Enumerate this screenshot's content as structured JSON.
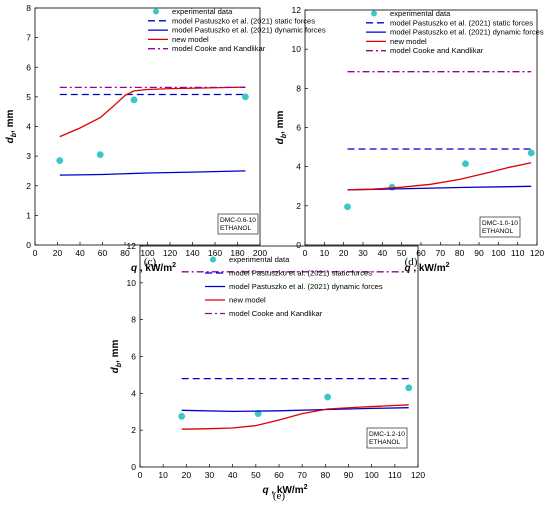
{
  "chart_data": [
    {
      "type": "line",
      "panel_label": "(c)",
      "xlabel": "q , kW/m²",
      "ylabel": "db, mm",
      "xlim": [
        0,
        200
      ],
      "ylim": [
        0,
        8
      ],
      "xticks": [
        "0",
        "20",
        "40",
        "60",
        "80",
        "100",
        "120",
        "140",
        "160",
        "180",
        "200"
      ],
      "yticks": [
        "0",
        "1",
        "2",
        "3",
        "4",
        "5",
        "6",
        "7",
        "8"
      ],
      "note": [
        "DMC-0.6-10",
        "ETHANOL"
      ],
      "legend_position": "top-right",
      "series": [
        {
          "name": "experimental data",
          "style": "markers",
          "color": "#3cc7c7",
          "x": [
            22,
            58,
            88,
            187
          ],
          "y": [
            2.85,
            3.05,
            4.9,
            5.0
          ]
        },
        {
          "name": "model Pastuszko et al. (2021) static forces",
          "style": "dash",
          "color": "#0000cc",
          "x": [
            22,
            187
          ],
          "y": [
            5.08,
            5.08
          ]
        },
        {
          "name": "model Pastuszko et al. (2021) dynamic forces",
          "style": "solid",
          "color": "#0000cc",
          "x": [
            22,
            60,
            100,
            140,
            187
          ],
          "y": [
            2.36,
            2.38,
            2.43,
            2.46,
            2.5
          ]
        },
        {
          "name": "new model",
          "style": "solid",
          "color": "#dd0000",
          "x": [
            22,
            40,
            58,
            70,
            80,
            88,
            100,
            120,
            150,
            187
          ],
          "y": [
            3.66,
            3.95,
            4.3,
            4.7,
            5.05,
            5.2,
            5.25,
            5.28,
            5.3,
            5.33
          ]
        },
        {
          "name": "model Cooke and Kandlikar",
          "style": "dashdot",
          "color": "#990099",
          "x": [
            22,
            187
          ],
          "y": [
            5.32,
            5.32
          ]
        }
      ]
    },
    {
      "type": "line",
      "panel_label": "(d)",
      "xlabel": "q , kW/m²",
      "ylabel": "db, mm",
      "xlim": [
        0,
        120
      ],
      "ylim": [
        0,
        12
      ],
      "xticks": [
        "0",
        "10",
        "20",
        "30",
        "40",
        "50",
        "60",
        "70",
        "80",
        "90",
        "100",
        "110",
        "120"
      ],
      "yticks": [
        "0",
        "2",
        "4",
        "6",
        "8",
        "10",
        "12"
      ],
      "note": [
        "DMC-1.0-10",
        "ETHANOL"
      ],
      "legend_position": "top-right",
      "series": [
        {
          "name": "experimental data",
          "style": "markers",
          "color": "#3cc7c7",
          "x": [
            22,
            45,
            83,
            117
          ],
          "y": [
            1.95,
            2.95,
            4.15,
            4.7
          ]
        },
        {
          "name": "model Pastuszko et al. (2021) static forces",
          "style": "dash",
          "color": "#0000cc",
          "x": [
            22,
            117
          ],
          "y": [
            4.9,
            4.9
          ]
        },
        {
          "name": "model Pastuszko et al. (2021) dynamic forces",
          "style": "solid",
          "color": "#0000cc",
          "x": [
            22,
            45,
            83,
            117
          ],
          "y": [
            2.82,
            2.86,
            2.94,
            3.0
          ]
        },
        {
          "name": "new model",
          "style": "solid",
          "color": "#dd0000",
          "x": [
            22,
            35,
            50,
            65,
            80,
            95,
            105,
            117
          ],
          "y": [
            2.82,
            2.85,
            2.95,
            3.1,
            3.35,
            3.7,
            3.95,
            4.2
          ]
        },
        {
          "name": "model Cooke and Kandlikar",
          "style": "dashdot",
          "color": "#990099",
          "x": [
            22,
            117
          ],
          "y": [
            8.85,
            8.85
          ]
        }
      ]
    },
    {
      "type": "line",
      "panel_label": "(e)",
      "xlabel": "q , kW/m²",
      "ylabel": "db, mm",
      "xlim": [
        0,
        120
      ],
      "ylim": [
        0,
        12
      ],
      "xticks": [
        "0",
        "10",
        "20",
        "30",
        "40",
        "50",
        "60",
        "70",
        "80",
        "90",
        "100",
        "110",
        "120"
      ],
      "yticks": [
        "0",
        "2",
        "4",
        "6",
        "8",
        "10",
        "12"
      ],
      "note": [
        "DMC-1.2-10",
        "ETHANOL"
      ],
      "legend_position": "top-right",
      "series": [
        {
          "name": "experimental data",
          "style": "markers",
          "color": "#3cc7c7",
          "x": [
            18,
            51,
            81,
            116
          ],
          "y": [
            2.75,
            2.9,
            3.8,
            4.3
          ]
        },
        {
          "name": "model Pastuszko et al. (2021) static forces",
          "style": "dash",
          "color": "#0000cc",
          "x": [
            18,
            116
          ],
          "y": [
            4.8,
            4.8
          ]
        },
        {
          "name": "model Pastuszko et al. (2021) dynamic forces",
          "style": "solid",
          "color": "#0000cc",
          "x": [
            18,
            40,
            60,
            81,
            100,
            116
          ],
          "y": [
            3.08,
            3.02,
            3.05,
            3.12,
            3.18,
            3.22
          ]
        },
        {
          "name": "new model",
          "style": "solid",
          "color": "#dd0000",
          "x": [
            18,
            30,
            40,
            50,
            60,
            70,
            81,
            95,
            116
          ],
          "y": [
            2.05,
            2.08,
            2.12,
            2.25,
            2.55,
            2.9,
            3.15,
            3.25,
            3.38
          ]
        },
        {
          "name": "model Cooke and Kandlikar",
          "style": "dashdot",
          "color": "#990099",
          "x": [
            18,
            116
          ],
          "y": [
            10.6,
            10.6
          ]
        }
      ]
    }
  ]
}
